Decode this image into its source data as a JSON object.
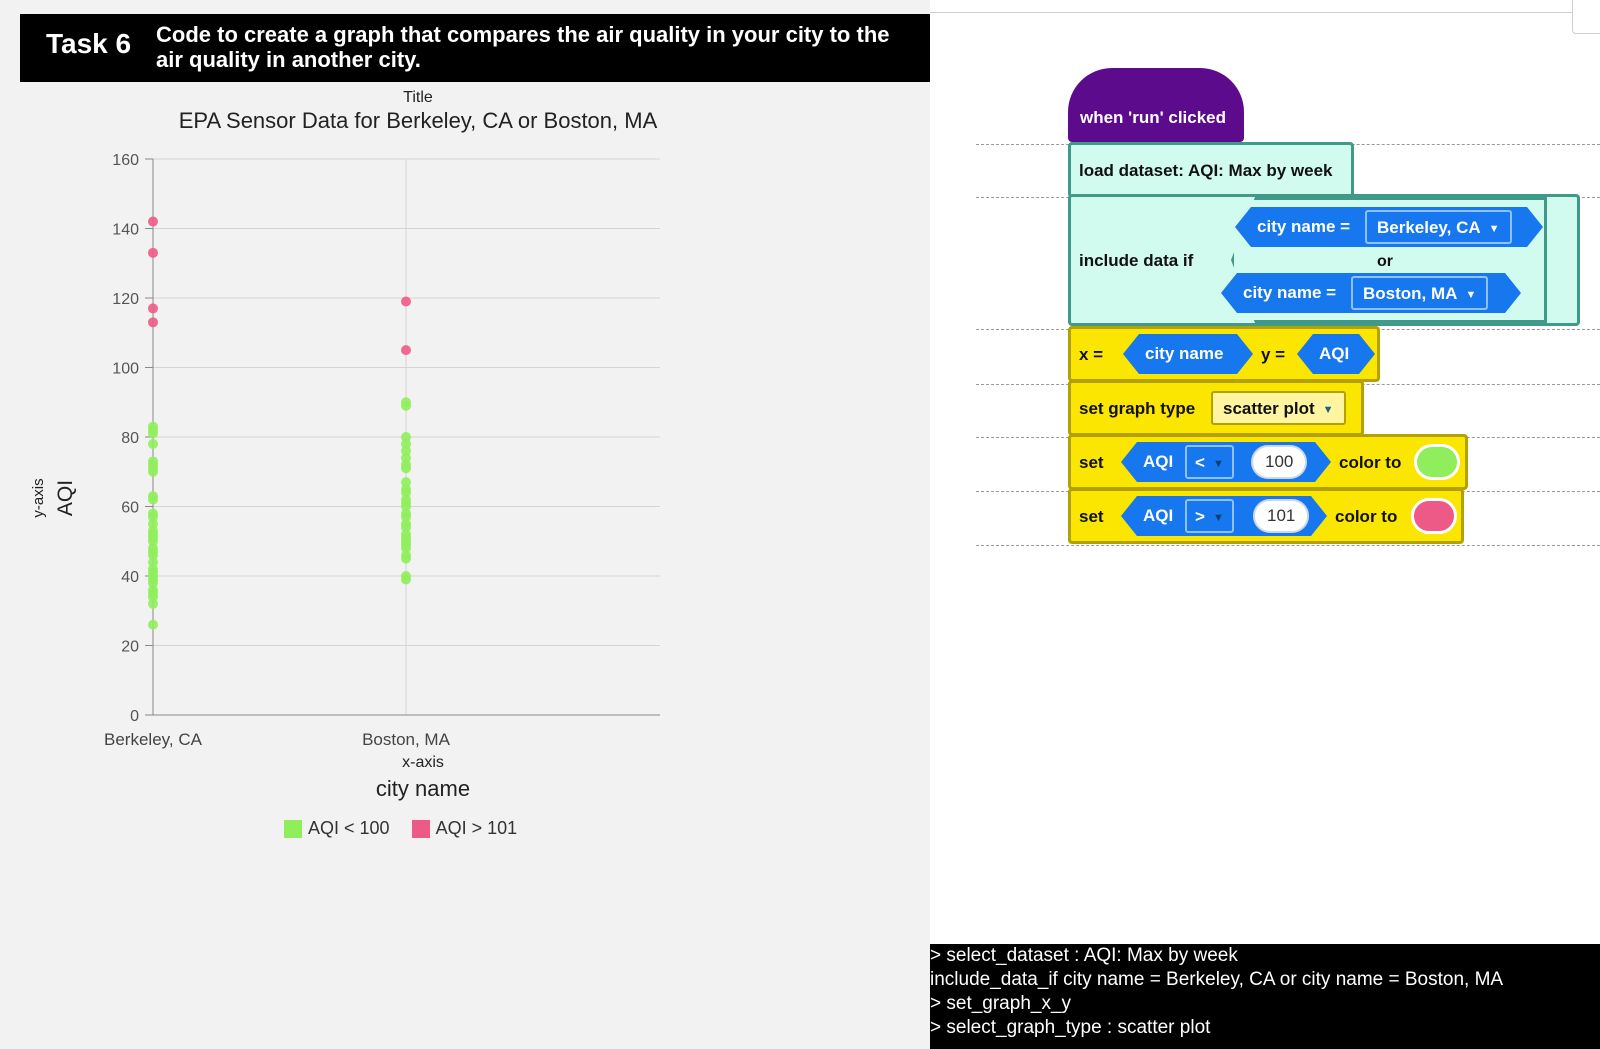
{
  "task": {
    "label": "Task 6",
    "description": "Code to create a graph that compares the air quality in your city to the air quality in another city."
  },
  "chart_data": {
    "type": "scatter",
    "title_caption": "Title",
    "title": "EPA Sensor Data for Berkeley, CA or Boston, MA",
    "ylabel_caption": "y-axis",
    "ylabel": "AQI",
    "xlabel_caption": "x-axis",
    "xlabel": "city name",
    "categories": [
      "Berkeley, CA",
      "Boston, MA"
    ],
    "ylim": [
      0,
      160
    ],
    "yticks": [
      0,
      20,
      40,
      60,
      80,
      100,
      120,
      140,
      160
    ],
    "grid": true,
    "legend_position": "bottom",
    "series": [
      {
        "name": "AQI < 100",
        "color": "#90ee5c",
        "points": [
          {
            "x": "Berkeley, CA",
            "values": [
              83,
              82,
              81,
              78,
              73,
              72,
              71,
              70,
              63,
              62,
              58,
              57,
              55,
              53,
              52,
              51,
              50,
              48,
              47,
              46,
              44,
              42,
              41,
              40,
              39,
              38,
              36,
              35,
              34,
              32,
              26
            ]
          },
          {
            "x": "Boston, MA",
            "values": [
              90,
              89,
              80,
              78,
              76,
              74,
              72,
              71,
              67,
              65,
              64,
              62,
              61,
              60,
              58,
              57,
              55,
              54,
              52,
              51,
              50,
              49,
              48,
              46,
              45,
              40,
              39
            ]
          }
        ]
      },
      {
        "name": "AQI > 101",
        "color": "#ee5a87",
        "points": [
          {
            "x": "Berkeley, CA",
            "values": [
              142,
              133,
              117,
              113
            ]
          },
          {
            "x": "Boston, MA",
            "values": [
              119,
              105
            ]
          }
        ]
      }
    ]
  },
  "blocks": {
    "hat": "when 'run' clicked",
    "load": "load dataset: AQI: Max by week",
    "include_label": "include data if",
    "cond1_label": "city name =",
    "cond1_value": "Berkeley, CA",
    "or_label": "or",
    "cond2_label": "city name =",
    "cond2_value": "Boston, MA",
    "x_label": "x =",
    "x_value": "city name",
    "y_label": "y =",
    "y_value": "AQI",
    "graph_type_label": "set graph type",
    "graph_type_value": "scatter plot",
    "set1_label": "set",
    "set1_field": "AQI",
    "set1_op": "<",
    "set1_num": "100",
    "set1_color_label": "color to",
    "set1_color": "#90ee5c",
    "set2_label": "set",
    "set2_field": "AQI",
    "set2_op": ">",
    "set2_num": "101",
    "set2_color_label": "color to",
    "set2_color": "#ee5a87"
  },
  "console": [
    "> select_dataset : AQI: Max by week",
    "include_data_if city name = Berkeley, CA or city name = Boston, MA",
    "> set_graph_x_y",
    "> select_graph_type : scatter plot"
  ]
}
